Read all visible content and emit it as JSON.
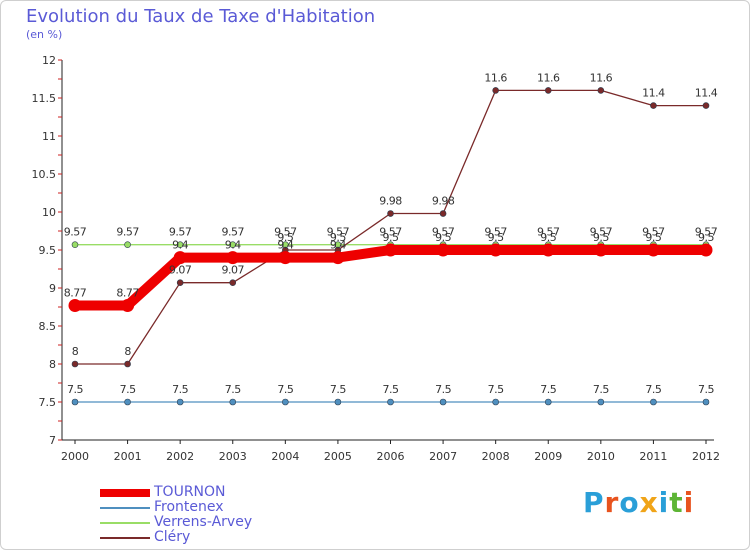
{
  "title": "Evolution du Taux de Taxe d'Habitation",
  "subtitle": "(en %)",
  "logo": {
    "text": "Proxiti",
    "letter_colors": [
      "#2a9fd8",
      "#e8531e",
      "#2a9fd8",
      "#f0a418",
      "#2a9fd8",
      "#5db535",
      "#e8531e"
    ]
  },
  "chart_data": {
    "type": "line",
    "title": "Evolution du Taux de Taxe d'Habitation",
    "ylabel": "(en %)",
    "xlabel": "",
    "x": [
      "2000",
      "2001",
      "2002",
      "2003",
      "2004",
      "2005",
      "2006",
      "2007",
      "2008",
      "2009",
      "2010",
      "2011",
      "2012"
    ],
    "ylim": [
      7,
      12
    ],
    "yticks": [
      "7",
      "7.5",
      "8",
      "8.5",
      "9",
      "9.5",
      "10",
      "10.5",
      "11",
      "11.5",
      "12"
    ],
    "grid": false,
    "legend_position": "bottom-left",
    "series": [
      {
        "name": "TOURNON",
        "color": "#ee0000",
        "emphasis": true,
        "values": [
          8.77,
          8.77,
          9.4,
          9.4,
          9.4,
          9.4,
          9.5,
          9.5,
          9.5,
          9.5,
          9.5,
          9.5,
          9.5
        ],
        "labels": [
          "8.77",
          "8.77",
          "9.4",
          "9.4",
          "9.4",
          "9.4",
          "9.5",
          "9.5",
          "9.5",
          "9.5",
          "9.5",
          "9.5",
          "9.5"
        ]
      },
      {
        "name": "Frontenex",
        "color": "#4f8fbf",
        "emphasis": false,
        "values": [
          7.5,
          7.5,
          7.5,
          7.5,
          7.5,
          7.5,
          7.5,
          7.5,
          7.5,
          7.5,
          7.5,
          7.5,
          7.5
        ],
        "labels": [
          "7.5",
          "7.5",
          "7.5",
          "7.5",
          "7.5",
          "7.5",
          "7.5",
          "7.5",
          "7.5",
          "7.5",
          "7.5",
          "7.5",
          "7.5"
        ]
      },
      {
        "name": "Verrens-Arvey",
        "color": "#99dd66",
        "emphasis": false,
        "values": [
          9.57,
          9.57,
          9.57,
          9.57,
          9.57,
          9.57,
          9.57,
          9.57,
          9.57,
          9.57,
          9.57,
          9.57,
          9.57
        ],
        "labels": [
          "9.57",
          "9.57",
          "9.57",
          "9.57",
          "9.57",
          "9.57",
          "9.57",
          "9.57",
          "9.57",
          "9.57",
          "9.57",
          "9.57",
          "9.57"
        ]
      },
      {
        "name": "Cléry",
        "color": "#7a2a2a",
        "emphasis": false,
        "values": [
          8,
          8,
          9.07,
          9.07,
          9.5,
          9.5,
          9.98,
          9.98,
          11.6,
          11.6,
          11.6,
          11.4,
          11.4
        ],
        "labels": [
          "8",
          "8",
          "9.07",
          "9.07",
          "9.5",
          "9.5",
          "9.98",
          "9.98",
          "11.6",
          "11.6",
          "11.6",
          "11.4",
          "11.4"
        ]
      }
    ]
  }
}
